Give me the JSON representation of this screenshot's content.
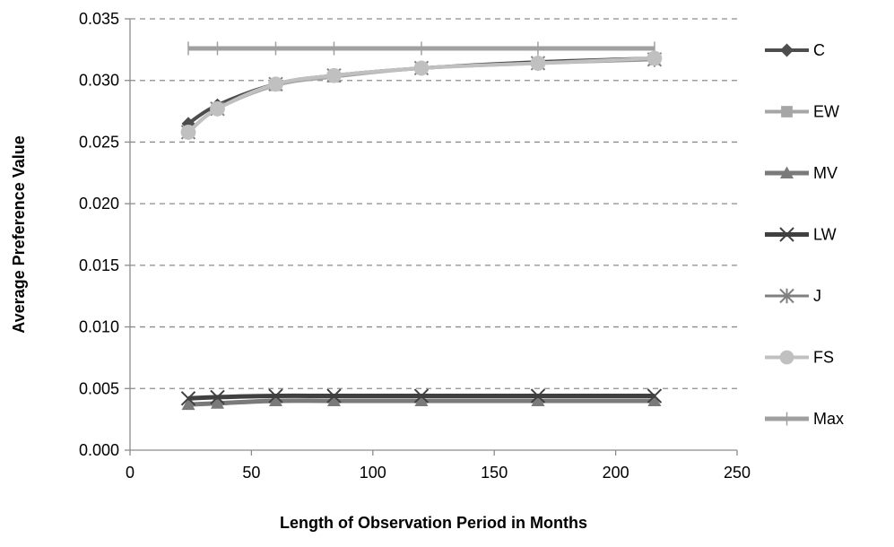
{
  "chart_data": {
    "type": "line",
    "title": "",
    "xlabel": "Length of Observation Period in Months",
    "ylabel": "Average Preference Value",
    "xlim": [
      0,
      250
    ],
    "ylim": [
      0,
      0.035
    ],
    "x_ticks": [
      0,
      50,
      100,
      150,
      200,
      250
    ],
    "y_ticks": [
      0.0,
      0.005,
      0.01,
      0.015,
      0.02,
      0.025,
      0.03,
      0.035
    ],
    "x_tick_labels": [
      "0",
      "50",
      "100",
      "150",
      "200",
      "250"
    ],
    "y_tick_labels": [
      "0.000",
      "0.005",
      "0.010",
      "0.015",
      "0.020",
      "0.025",
      "0.030",
      "0.035"
    ],
    "grid": "horizontal dashed",
    "legend_position": "right",
    "x": [
      24,
      36,
      60,
      84,
      120,
      168,
      216
    ],
    "series": [
      {
        "name": "C",
        "marker": "diamond",
        "color": "#4d4d4d",
        "values": [
          0.0265,
          0.028,
          0.0297,
          0.0304,
          0.031,
          0.0315,
          0.0318
        ]
      },
      {
        "name": "EW",
        "marker": "square",
        "color": "#a6a6a6",
        "values": [
          0.0258,
          0.0277,
          0.0296,
          0.0303,
          0.031,
          0.0314,
          0.0317
        ]
      },
      {
        "name": "MV",
        "marker": "triangle",
        "color": "#7a7a7a",
        "values": [
          0.0037,
          0.0038,
          0.004,
          0.004,
          0.004,
          0.004,
          0.004
        ]
      },
      {
        "name": "LW",
        "marker": "x",
        "color": "#404040",
        "values": [
          0.0042,
          0.0043,
          0.0044,
          0.0044,
          0.0044,
          0.0044,
          0.0044
        ]
      },
      {
        "name": "J",
        "marker": "star",
        "color": "#808080",
        "values": [
          0.0258,
          0.0277,
          0.0297,
          0.0304,
          0.031,
          0.0314,
          0.0317
        ]
      },
      {
        "name": "FS",
        "marker": "circle",
        "color": "#c0c0c0",
        "values": [
          0.0258,
          0.0277,
          0.0297,
          0.0304,
          0.031,
          0.0314,
          0.0318
        ]
      },
      {
        "name": "Max",
        "marker": "plus",
        "color": "#a0a0a0",
        "values": [
          0.0326,
          0.0326,
          0.0326,
          0.0326,
          0.0326,
          0.0326,
          0.0326
        ]
      }
    ]
  }
}
